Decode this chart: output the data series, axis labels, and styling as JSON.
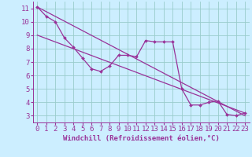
{
  "xlabel": "Windchill (Refroidissement éolien,°C)",
  "background_color": "#cceeff",
  "grid_color": "#99cccc",
  "line_color": "#993399",
  "xlim": [
    -0.5,
    23.5
  ],
  "ylim": [
    2.5,
    11.5
  ],
  "yticks": [
    3,
    4,
    5,
    6,
    7,
    8,
    9,
    10,
    11
  ],
  "xticks": [
    0,
    1,
    2,
    3,
    4,
    5,
    6,
    7,
    8,
    9,
    10,
    11,
    12,
    13,
    14,
    15,
    16,
    17,
    18,
    19,
    20,
    21,
    22,
    23
  ],
  "series1_x": [
    0,
    1,
    2,
    3,
    4,
    5,
    6,
    7,
    8,
    9,
    10,
    11,
    12,
    13,
    14,
    15,
    16,
    17,
    18,
    19,
    20,
    21,
    22,
    23
  ],
  "series1_y": [
    11.1,
    10.4,
    10.0,
    8.8,
    8.1,
    7.3,
    6.5,
    6.3,
    6.7,
    7.5,
    7.5,
    7.4,
    8.6,
    8.5,
    8.5,
    8.5,
    5.0,
    3.8,
    3.8,
    4.0,
    4.1,
    3.1,
    3.0,
    3.2
  ],
  "series2_x": [
    0,
    23
  ],
  "series2_y": [
    11.1,
    3.0
  ],
  "series3_x": [
    0,
    23
  ],
  "series3_y": [
    9.0,
    3.2
  ],
  "fontsize_xlabel": 6.5,
  "tick_fontsize": 6.5,
  "label_color": "#993399"
}
